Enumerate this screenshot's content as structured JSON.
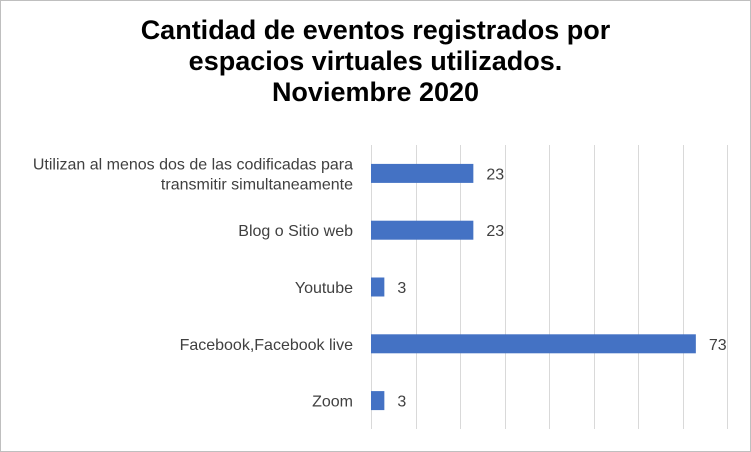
{
  "chart_data": {
    "type": "bar",
    "orientation": "horizontal",
    "title_lines": [
      "Cantidad de eventos registrados por",
      "espacios virtuales utilizados.",
      "Noviembre 2020"
    ],
    "categories": [
      [
        "Utilizan al menos dos de las codificadas para",
        "transmitir simultaneamente"
      ],
      [
        "Blog o Sitio web"
      ],
      [
        "Youtube"
      ],
      [
        "Facebook,Facebook live"
      ],
      [
        "Zoom"
      ]
    ],
    "values": [
      23,
      23,
      3,
      73,
      3
    ],
    "data_labels": [
      "23",
      "23",
      "3",
      "73",
      "3"
    ],
    "xlim": [
      0,
      80
    ],
    "x_gridline_step": 10,
    "grid": true,
    "legend": "none",
    "bar_color": "#4472c4",
    "grid_color": "#d9d9d9"
  }
}
